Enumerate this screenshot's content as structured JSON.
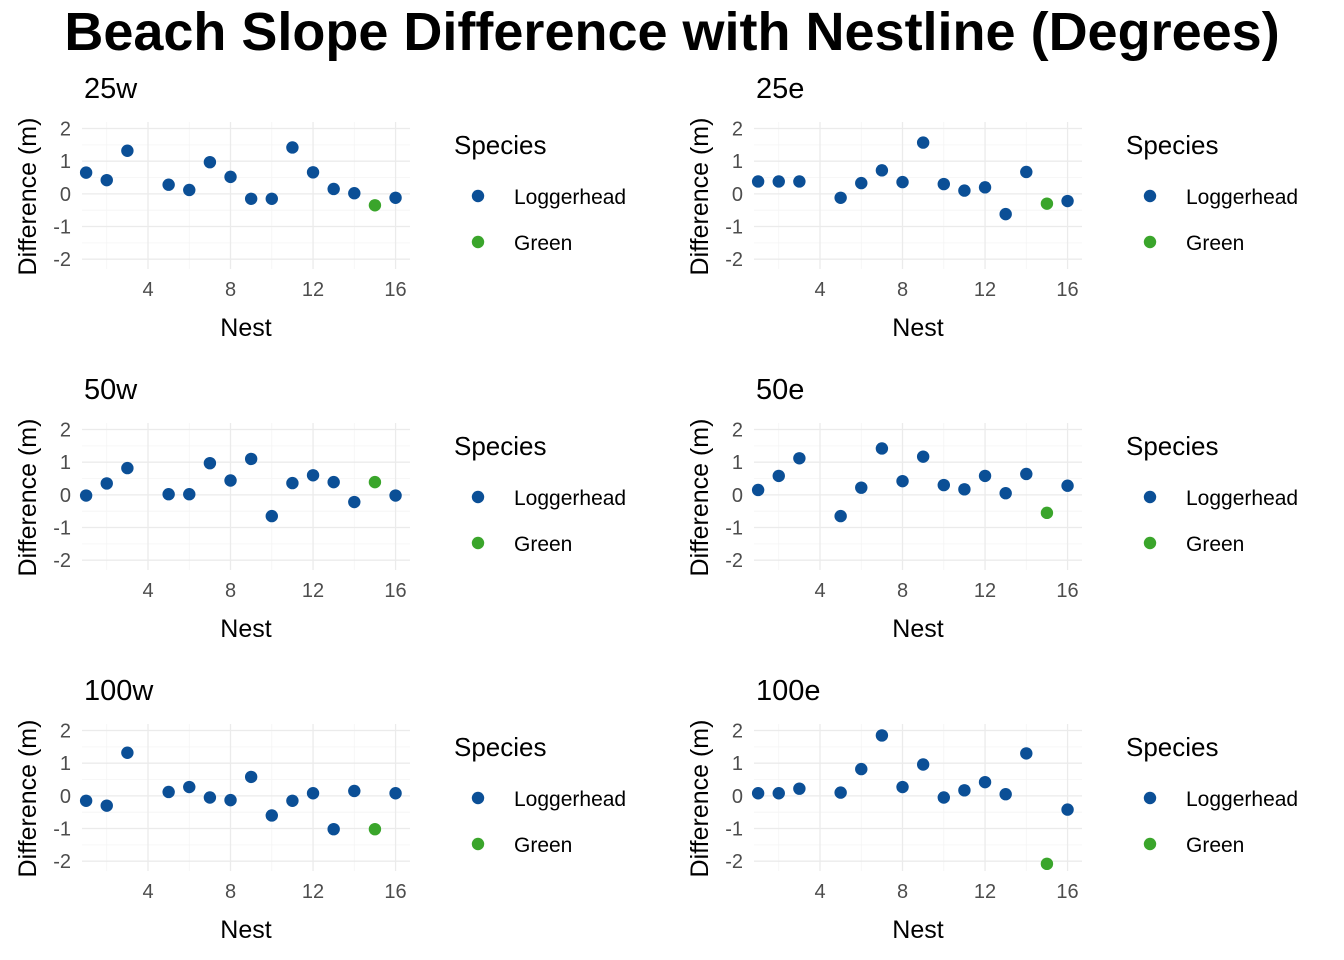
{
  "title": "Beach Slope Difference with Nestline (Degrees)",
  "colors": {
    "Loggerhead": "#0b4f96",
    "Green": "#3aa52b"
  },
  "chart_data": [
    {
      "type": "scatter",
      "title": "25w",
      "xlabel": "Nest",
      "ylabel": "Difference (m)",
      "xlim": [
        0.8,
        16.7
      ],
      "ylim": [
        -2.3,
        2.2
      ],
      "xticks": [
        4,
        8,
        12,
        16
      ],
      "yticks": [
        -2,
        -1,
        0,
        1,
        2
      ],
      "legend": {
        "title": "Species",
        "entries": [
          "Loggerhead",
          "Green"
        ]
      },
      "series": [
        {
          "name": "Loggerhead",
          "x": [
            1,
            2,
            3,
            5,
            6,
            7,
            8,
            9,
            10,
            11,
            12,
            13,
            14,
            16
          ],
          "y": [
            0.65,
            0.42,
            1.32,
            0.28,
            0.12,
            0.97,
            0.52,
            -0.15,
            -0.15,
            1.42,
            0.66,
            0.15,
            0.02,
            -0.12
          ]
        },
        {
          "name": "Green",
          "x": [
            15
          ],
          "y": [
            -0.35
          ]
        }
      ]
    },
    {
      "type": "scatter",
      "title": "25e",
      "xlabel": "Nest",
      "ylabel": "Difference (m)",
      "xlim": [
        0.8,
        16.7
      ],
      "ylim": [
        -2.3,
        2.2
      ],
      "xticks": [
        4,
        8,
        12,
        16
      ],
      "yticks": [
        -2,
        -1,
        0,
        1,
        2
      ],
      "legend": {
        "title": "Species",
        "entries": [
          "Loggerhead",
          "Green"
        ]
      },
      "series": [
        {
          "name": "Loggerhead",
          "x": [
            1,
            2,
            3,
            5,
            6,
            7,
            8,
            9,
            10,
            11,
            12,
            13,
            14,
            16
          ],
          "y": [
            0.38,
            0.38,
            0.38,
            -0.12,
            0.33,
            0.72,
            0.36,
            1.57,
            0.3,
            0.1,
            0.2,
            -0.62,
            0.67,
            -0.22
          ]
        },
        {
          "name": "Green",
          "x": [
            15
          ],
          "y": [
            -0.3
          ]
        }
      ]
    },
    {
      "type": "scatter",
      "title": "50w",
      "xlabel": "Nest",
      "ylabel": "Difference (m)",
      "xlim": [
        0.8,
        16.7
      ],
      "ylim": [
        -2.3,
        2.2
      ],
      "xticks": [
        4,
        8,
        12,
        16
      ],
      "yticks": [
        -2,
        -1,
        0,
        1,
        2
      ],
      "legend": {
        "title": "Species",
        "entries": [
          "Loggerhead",
          "Green"
        ]
      },
      "series": [
        {
          "name": "Loggerhead",
          "x": [
            1,
            2,
            3,
            5,
            6,
            7,
            8,
            9,
            10,
            11,
            12,
            13,
            14,
            16
          ],
          "y": [
            -0.02,
            0.35,
            0.82,
            0.02,
            0.02,
            0.97,
            0.44,
            1.1,
            -0.65,
            0.36,
            0.6,
            0.39,
            -0.22,
            -0.02
          ]
        },
        {
          "name": "Green",
          "x": [
            15
          ],
          "y": [
            0.39
          ]
        }
      ]
    },
    {
      "type": "scatter",
      "title": "50e",
      "xlabel": "Nest",
      "ylabel": "Difference (m)",
      "xlim": [
        0.8,
        16.7
      ],
      "ylim": [
        -2.3,
        2.2
      ],
      "xticks": [
        4,
        8,
        12,
        16
      ],
      "yticks": [
        -2,
        -1,
        0,
        1,
        2
      ],
      "legend": {
        "title": "Species",
        "entries": [
          "Loggerhead",
          "Green"
        ]
      },
      "series": [
        {
          "name": "Loggerhead",
          "x": [
            1,
            2,
            3,
            5,
            6,
            7,
            8,
            9,
            10,
            11,
            12,
            13,
            14,
            16
          ],
          "y": [
            0.15,
            0.58,
            1.12,
            -0.65,
            0.22,
            1.42,
            0.42,
            1.17,
            0.3,
            0.17,
            0.58,
            0.05,
            0.64,
            0.28
          ]
        },
        {
          "name": "Green",
          "x": [
            15
          ],
          "y": [
            -0.55
          ]
        }
      ]
    },
    {
      "type": "scatter",
      "title": "100w",
      "xlabel": "Nest",
      "ylabel": "Difference (m)",
      "xlim": [
        0.8,
        16.7
      ],
      "ylim": [
        -2.3,
        2.2
      ],
      "xticks": [
        4,
        8,
        12,
        16
      ],
      "yticks": [
        -2,
        -1,
        0,
        1,
        2
      ],
      "legend": {
        "title": "Species",
        "entries": [
          "Loggerhead",
          "Green"
        ]
      },
      "series": [
        {
          "name": "Loggerhead",
          "x": [
            1,
            2,
            3,
            5,
            6,
            7,
            8,
            9,
            10,
            11,
            12,
            13,
            14,
            16
          ],
          "y": [
            -0.15,
            -0.3,
            1.32,
            0.12,
            0.27,
            -0.05,
            -0.13,
            0.58,
            -0.6,
            -0.15,
            0.08,
            -1.02,
            0.15,
            0.08
          ]
        },
        {
          "name": "Green",
          "x": [
            15
          ],
          "y": [
            -1.02
          ]
        }
      ]
    },
    {
      "type": "scatter",
      "title": "100e",
      "xlabel": "Nest",
      "ylabel": "Difference (m)",
      "xlim": [
        0.8,
        16.7
      ],
      "ylim": [
        -2.3,
        2.2
      ],
      "xticks": [
        4,
        8,
        12,
        16
      ],
      "yticks": [
        -2,
        -1,
        0,
        1,
        2
      ],
      "legend": {
        "title": "Species",
        "entries": [
          "Loggerhead",
          "Green"
        ]
      },
      "series": [
        {
          "name": "Loggerhead",
          "x": [
            1,
            2,
            3,
            5,
            6,
            7,
            8,
            9,
            10,
            11,
            12,
            13,
            14,
            16
          ],
          "y": [
            0.08,
            0.08,
            0.22,
            0.1,
            0.82,
            1.85,
            0.27,
            0.96,
            -0.05,
            0.17,
            0.42,
            0.05,
            1.3,
            -0.42
          ]
        },
        {
          "name": "Green",
          "x": [
            15
          ],
          "y": [
            -2.08
          ]
        }
      ]
    }
  ]
}
